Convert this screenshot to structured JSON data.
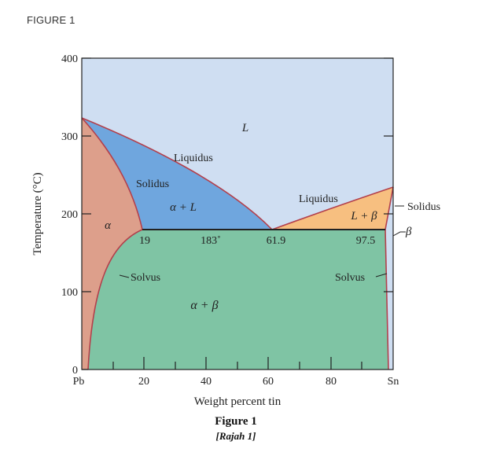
{
  "header": {
    "figure_tag": "FIGURE 1"
  },
  "axes": {
    "ylabel": "Temperature (°C)",
    "xlabel": "Weight percent tin",
    "y_ticks": [
      "0",
      "100",
      "200",
      "300",
      "400"
    ],
    "x_ticks": [
      "20",
      "40",
      "60",
      "80"
    ],
    "x_left_label": "Pb",
    "x_right_label": "Sn"
  },
  "regions": {
    "liquid": "L",
    "alpha": "α",
    "alpha_liquid": "α + L",
    "liquid_beta": "L + β",
    "alpha_beta": "α + β",
    "beta": "β"
  },
  "lines": {
    "liquidus_left": "Liquidus",
    "liquidus_right": "Liquidus",
    "solidus_left": "Solidus",
    "solidus_right": "Solidus",
    "solvus_left": "Solvus",
    "solvus_right": "Solvus"
  },
  "eutectic": {
    "alpha_comp": "19",
    "temperature": "183˚",
    "eutectic_comp": "61.9",
    "beta_comp": "97.5"
  },
  "caption": {
    "title": "Figure 1",
    "subtitle": "[Rajah 1]"
  },
  "colors": {
    "liquid": "#cfdef2",
    "alpha": "#dd9f8b",
    "alpha_liquid": "#6fa6de",
    "liquid_beta": "#f7bf80",
    "alpha_beta": "#7fc4a4",
    "boundary": "#b3404c"
  }
}
